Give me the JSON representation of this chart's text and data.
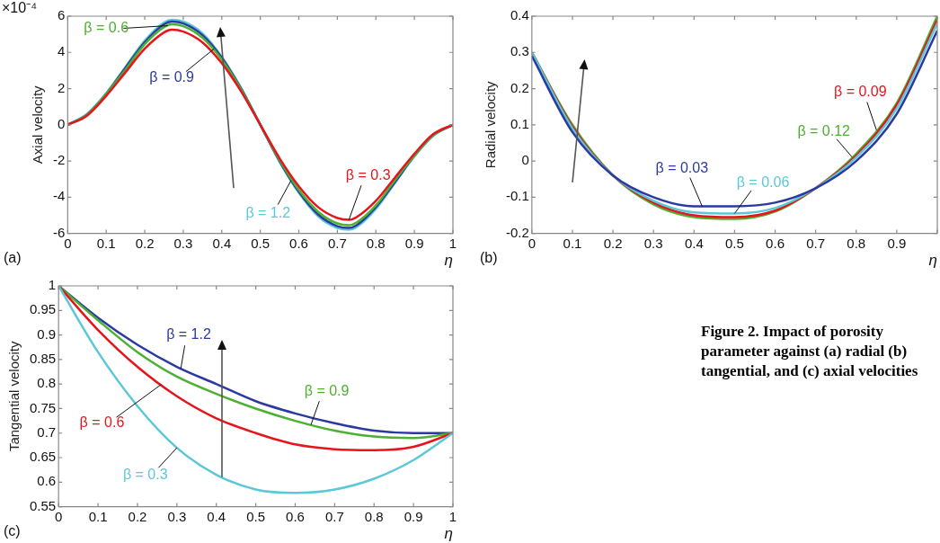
{
  "chart_data": [
    {
      "type": "line",
      "ylabel": "Axial velocity",
      "xlabel": "η",
      "annotations": [
        "(a)",
        "×10⁻⁴"
      ],
      "xlim": [
        0,
        1
      ],
      "xticks": [
        0,
        0.1,
        0.2,
        0.3,
        0.4,
        0.5,
        0.6,
        0.7,
        0.8,
        0.9,
        1
      ],
      "ylim": [
        -6,
        6
      ],
      "yticks": [
        -6,
        -4,
        -2,
        0,
        2,
        4,
        6
      ],
      "legend": false,
      "grid": false,
      "marker": "none",
      "line_style": "solid",
      "x": [
        0,
        0.05,
        0.1,
        0.15,
        0.2,
        0.25,
        0.27,
        0.3,
        0.35,
        0.4,
        0.45,
        0.5,
        0.55,
        0.6,
        0.65,
        0.7,
        0.73,
        0.75,
        0.8,
        0.85,
        0.9,
        0.95,
        1
      ],
      "series": [
        {
          "name": "β = 0.3",
          "color": "#e8141b",
          "values": [
            0,
            0.5,
            1.6,
            2.9,
            4.2,
            5.1,
            5.25,
            5.15,
            4.55,
            3.4,
            1.85,
            0,
            -1.85,
            -3.4,
            -4.55,
            -5.15,
            -5.25,
            -5.1,
            -4.2,
            -2.9,
            -1.6,
            -0.5,
            0
          ]
        },
        {
          "name": "β = 0.6",
          "color": "#4cb030",
          "values": [
            0,
            0.55,
            1.7,
            3.05,
            4.45,
            5.4,
            5.55,
            5.45,
            4.8,
            3.6,
            1.95,
            0,
            -1.95,
            -3.6,
            -4.8,
            -5.45,
            -5.55,
            -5.4,
            -4.45,
            -3.05,
            -1.7,
            -0.55,
            0
          ]
        },
        {
          "name": "β = 0.9",
          "color": "#2b3aa0",
          "values": [
            0,
            0.55,
            1.7,
            3.15,
            4.55,
            5.55,
            5.7,
            5.6,
            4.95,
            3.7,
            2.0,
            0,
            -2.0,
            -3.7,
            -4.95,
            -5.6,
            -5.7,
            -5.55,
            -4.55,
            -3.15,
            -1.7,
            -0.55,
            0
          ]
        },
        {
          "name": "β = 1.2",
          "color": "#5bc8d8",
          "values": [
            0,
            0.6,
            1.75,
            3.2,
            4.65,
            5.65,
            5.8,
            5.7,
            5.05,
            3.75,
            2.05,
            0,
            -2.05,
            -3.75,
            -5.05,
            -5.7,
            -5.8,
            -5.65,
            -4.65,
            -3.2,
            -1.75,
            -0.6,
            0
          ]
        }
      ]
    },
    {
      "type": "line",
      "ylabel": "Radial velocity",
      "xlabel": "η",
      "annotations": [
        "(b)"
      ],
      "xlim": [
        0,
        1
      ],
      "xticks": [
        0,
        0.1,
        0.2,
        0.3,
        0.4,
        0.5,
        0.6,
        0.7,
        0.8,
        0.9,
        {
          "value": 1,
          "label": null
        }
      ],
      "ylim": [
        -0.2,
        0.4
      ],
      "yticks": [
        -0.2,
        -0.1,
        0,
        0.1,
        0.2,
        0.3,
        0.4
      ],
      "legend": false,
      "grid": false,
      "marker": "none",
      "line_style": "solid",
      "x": [
        0,
        0.1,
        0.2,
        0.3,
        0.4,
        0.5,
        0.6,
        0.7,
        0.8,
        0.9,
        1
      ],
      "series": [
        {
          "name": "β = 0.03",
          "color": "#2b3aa0",
          "values": [
            0.29,
            0.08,
            -0.04,
            -0.1,
            -0.125,
            -0.125,
            -0.115,
            -0.075,
            0.0,
            0.13,
            0.36
          ]
        },
        {
          "name": "β = 0.06",
          "color": "#5bc8d8",
          "values": [
            0.3,
            0.09,
            -0.04,
            -0.11,
            -0.142,
            -0.145,
            -0.13,
            -0.075,
            0.01,
            0.145,
            0.38
          ]
        },
        {
          "name": "β = 0.09",
          "color": "#e8141b",
          "values": [
            0.3,
            0.095,
            -0.04,
            -0.115,
            -0.15,
            -0.155,
            -0.137,
            -0.075,
            0.015,
            0.155,
            0.39
          ]
        },
        {
          "name": "β = 0.12",
          "color": "#4cb030",
          "values": [
            0.3,
            0.1,
            -0.04,
            -0.12,
            -0.155,
            -0.16,
            -0.14,
            -0.075,
            0.02,
            0.16,
            0.4
          ]
        }
      ]
    },
    {
      "type": "line",
      "ylabel": "Tangential velocity",
      "xlabel": "η",
      "annotations": [
        "(c)"
      ],
      "xlim": [
        0,
        1
      ],
      "xticks": [
        0,
        0.1,
        0.2,
        0.3,
        0.4,
        0.5,
        0.6,
        0.7,
        0.8,
        0.9,
        1
      ],
      "ylim": [
        0.55,
        1
      ],
      "yticks": [
        0.55,
        0.6,
        0.65,
        0.7,
        0.75,
        0.8,
        0.85,
        0.9,
        0.95,
        1
      ],
      "legend": false,
      "grid": false,
      "marker": "none",
      "line_style": "solid",
      "x": [
        0,
        0.1,
        0.2,
        0.3,
        0.4,
        0.5,
        0.6,
        0.7,
        0.8,
        0.9,
        1
      ],
      "series": [
        {
          "name": "β = 0.3",
          "color": "#5bc8d8",
          "values": [
            1,
            0.865,
            0.755,
            0.67,
            0.615,
            0.585,
            0.578,
            0.585,
            0.607,
            0.645,
            0.7
          ]
        },
        {
          "name": "β = 0.6",
          "color": "#e8141b",
          "values": [
            1,
            0.91,
            0.835,
            0.775,
            0.73,
            0.7,
            0.677,
            0.667,
            0.665,
            0.672,
            0.7
          ]
        },
        {
          "name": "β = 0.9",
          "color": "#4cb030",
          "values": [
            1,
            0.93,
            0.865,
            0.815,
            0.78,
            0.75,
            0.725,
            0.705,
            0.693,
            0.69,
            0.7
          ]
        },
        {
          "name": "β = 1.2",
          "color": "#2b3aa0",
          "values": [
            1,
            0.935,
            0.88,
            0.835,
            0.8,
            0.765,
            0.74,
            0.72,
            0.705,
            0.7,
            0.7
          ]
        }
      ]
    },
    {
      "type": "other",
      "title": "Figure 2. Impact of porosity parameter against (a) radial (b) tangential, and (c) axial velocities"
    }
  ]
}
